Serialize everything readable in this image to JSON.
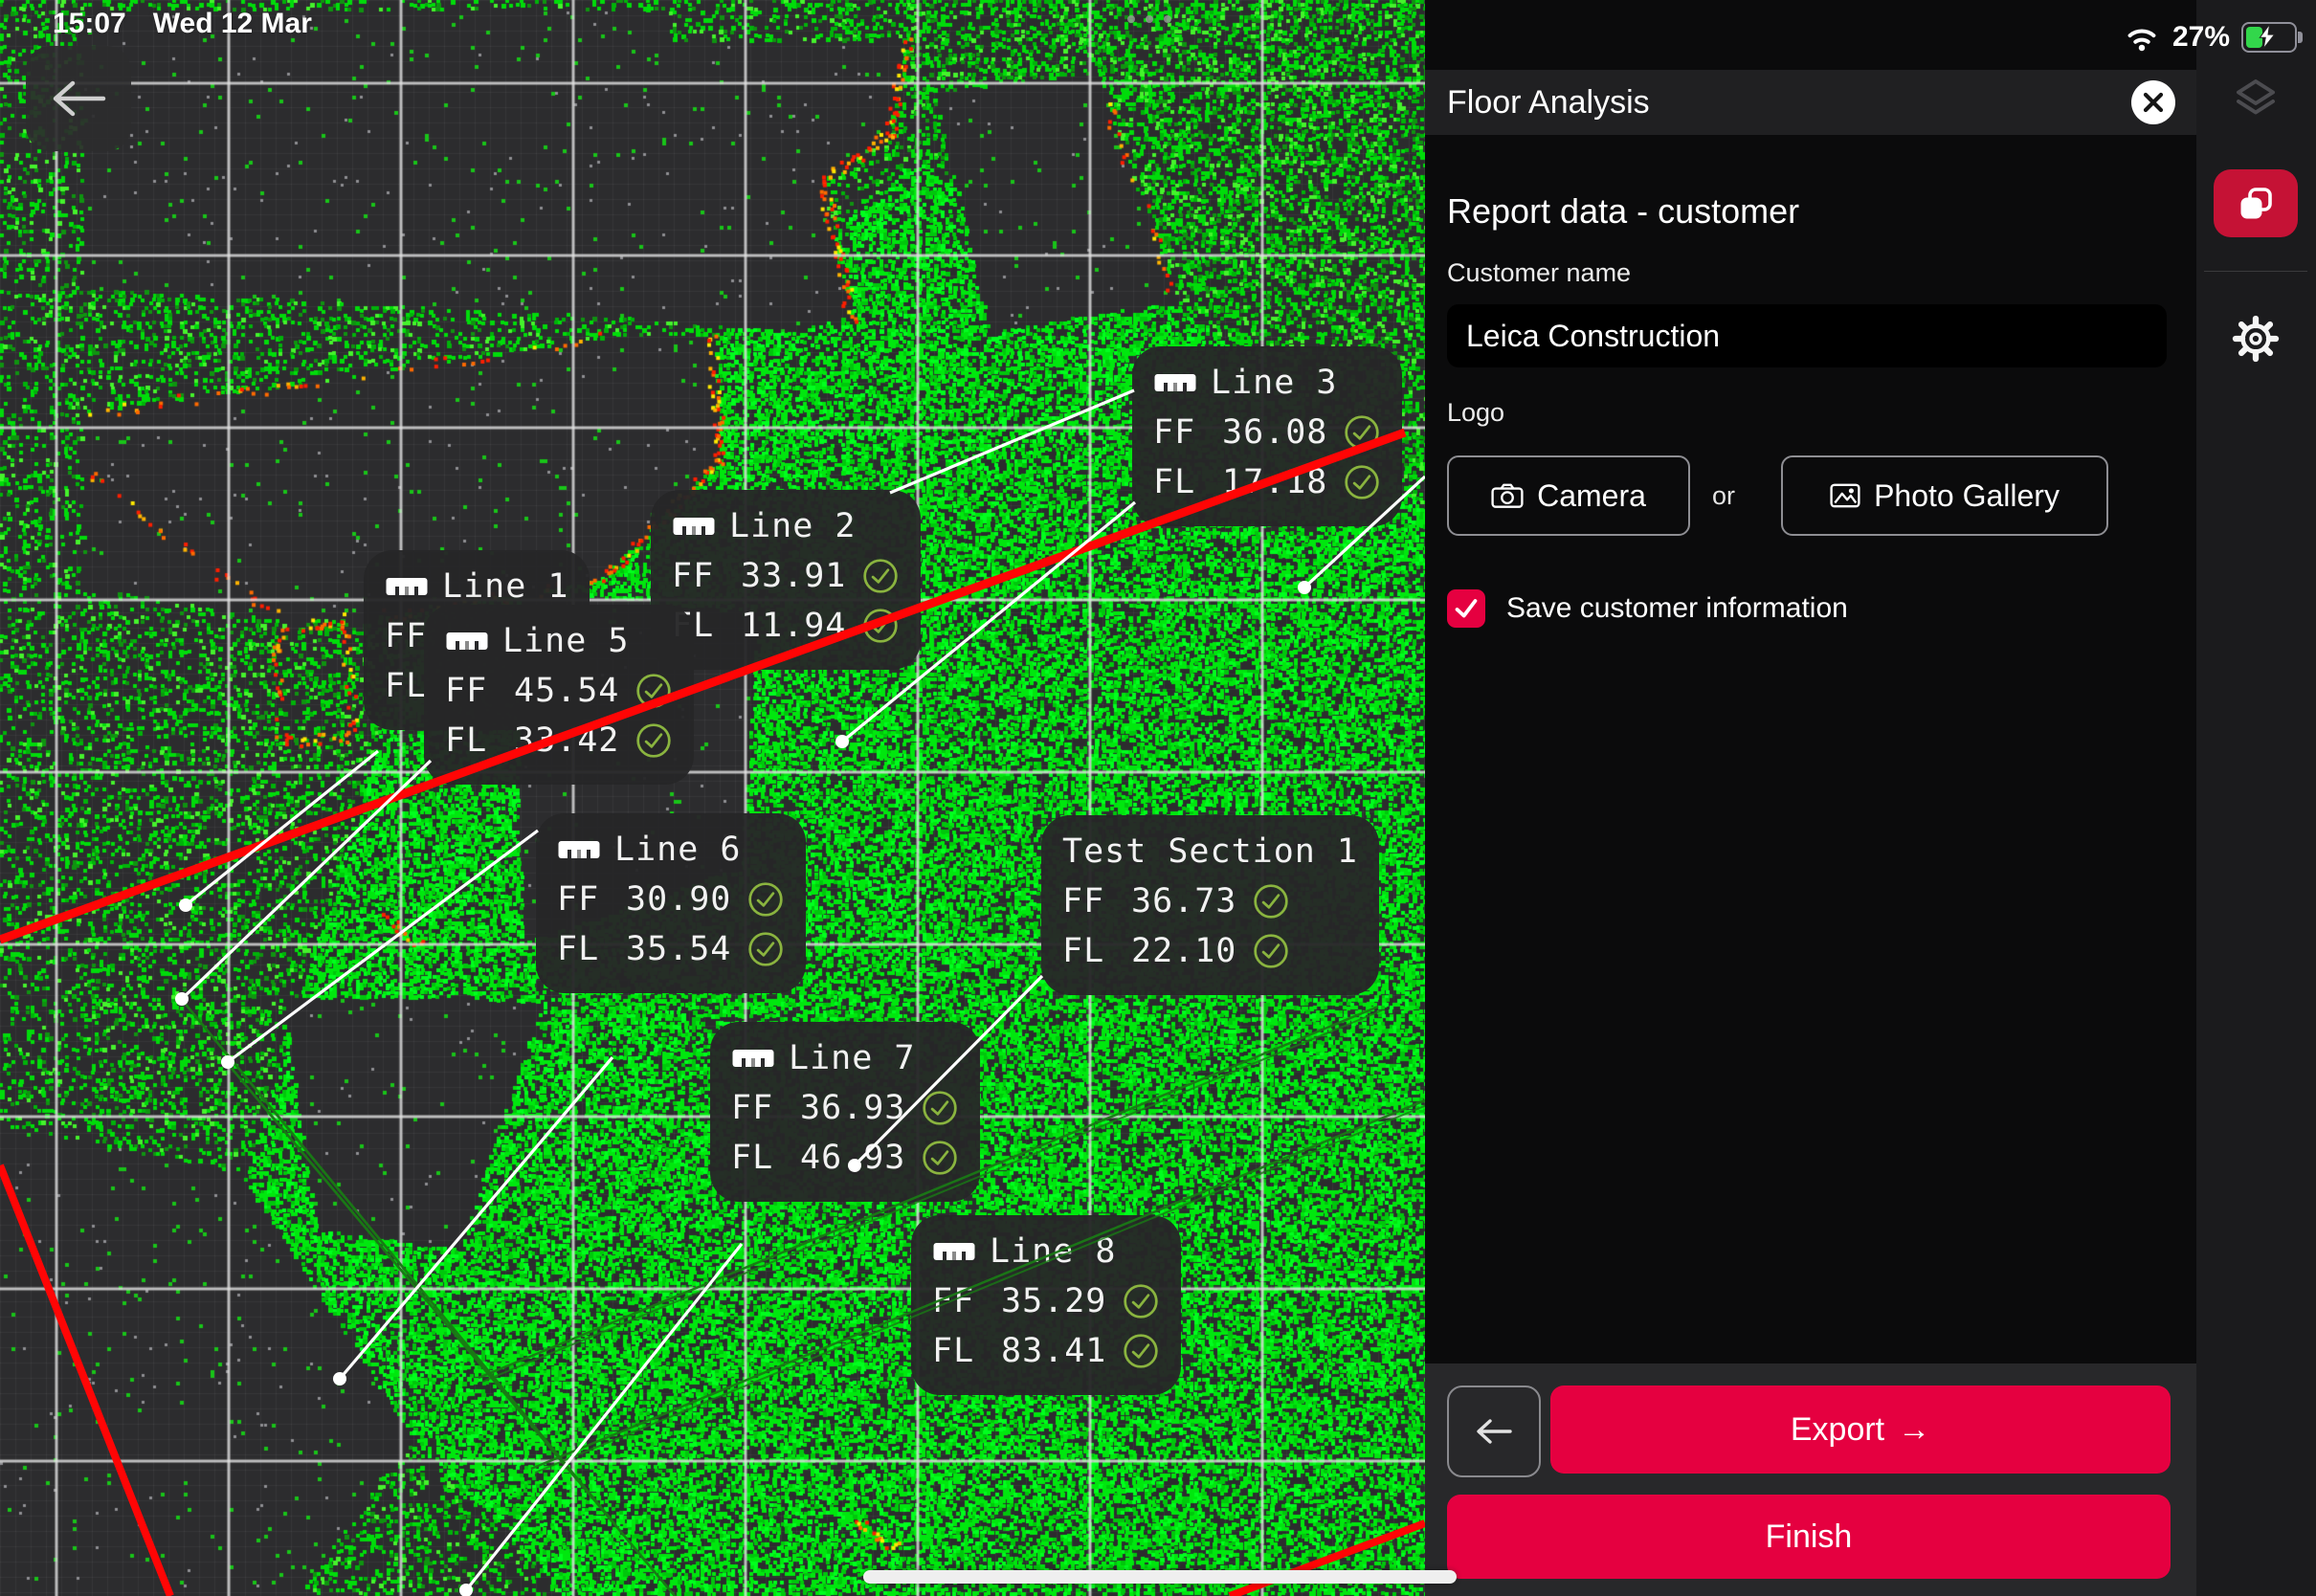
{
  "status_bar": {
    "time": "15:07",
    "date": "Wed 12 Mar",
    "battery_percent": "27%"
  },
  "panel": {
    "title": "Floor Analysis",
    "section_heading": "Report data - customer",
    "customer_name_label": "Customer name",
    "customer_name_value": "Leica Construction",
    "logo_label": "Logo",
    "camera_button_label": "Camera",
    "or_label": "or",
    "photo_gallery_button_label": "Photo Gallery",
    "save_checkbox_label": "Save customer information",
    "save_checkbox_checked": true,
    "export_button_label": "Export",
    "export_button_arrow": "→",
    "finish_button_label": "Finish"
  },
  "map": {
    "callouts": [
      {
        "id": "line-1",
        "title": "Line 1",
        "has_ruler_icon": true,
        "rows": [
          {
            "label": "FF",
            "value": "",
            "checked": false
          },
          {
            "label": "FL",
            "value": "",
            "checked": false
          }
        ]
      },
      {
        "id": "line-5",
        "title": "Line 5",
        "has_ruler_icon": true,
        "rows": [
          {
            "label": "FF",
            "value": "45.54",
            "checked": true
          },
          {
            "label": "FL",
            "value": "33.42",
            "checked": true
          }
        ]
      },
      {
        "id": "line-2",
        "title": "Line 2",
        "has_ruler_icon": true,
        "rows": [
          {
            "label": "FF",
            "value": "33.91",
            "checked": true
          },
          {
            "label": "FL",
            "value": "11.94",
            "checked": true
          }
        ]
      },
      {
        "id": "line-3",
        "title": "Line 3",
        "has_ruler_icon": true,
        "rows": [
          {
            "label": "FF",
            "value": "36.08",
            "checked": true
          },
          {
            "label": "FL",
            "value": "17.18",
            "checked": true
          }
        ]
      },
      {
        "id": "line-6",
        "title": "Line 6",
        "has_ruler_icon": true,
        "rows": [
          {
            "label": "FF",
            "value": "30.90",
            "checked": true
          },
          {
            "label": "FL",
            "value": "35.54",
            "checked": true
          }
        ]
      },
      {
        "id": "test-section-1",
        "title": "Test Section 1",
        "has_ruler_icon": false,
        "rows": [
          {
            "label": "FF",
            "value": "36.73",
            "checked": true
          },
          {
            "label": "FL",
            "value": "22.10",
            "checked": true
          }
        ]
      },
      {
        "id": "line-7",
        "title": "Line 7",
        "has_ruler_icon": true,
        "rows": [
          {
            "label": "FF",
            "value": "36.93",
            "checked": true
          },
          {
            "label": "FL",
            "value": "46.93",
            "checked": true
          }
        ]
      },
      {
        "id": "line-8",
        "title": "Line 8",
        "has_ruler_icon": true,
        "rows": [
          {
            "label": "FF",
            "value": "35.29",
            "checked": true
          },
          {
            "label": "FL",
            "value": "83.41",
            "checked": true
          }
        ]
      }
    ]
  },
  "colors": {
    "accent_red": "#e50040",
    "toolbar_red": "#c51235",
    "check_green": "#8ab43f",
    "point_green": "#00dc0a",
    "battery_green": "#32d74b"
  }
}
